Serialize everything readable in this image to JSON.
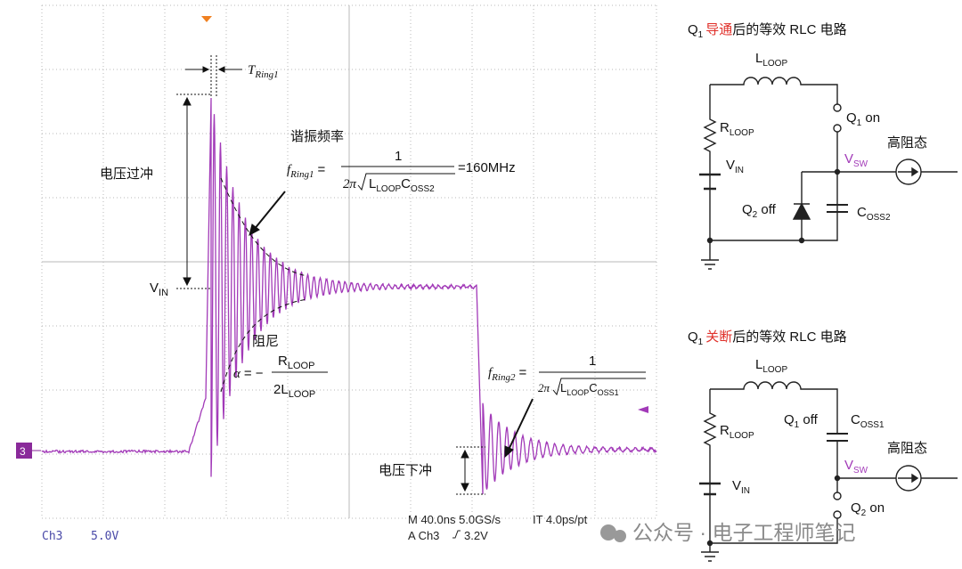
{
  "scope": {
    "channel_marker": "3",
    "t_ring": {
      "main": "T",
      "sub": "Ring1"
    },
    "overshoot": "电压过冲",
    "vin": {
      "main": "V",
      "sub": "IN"
    },
    "resonance_label": "谐振频率",
    "f_ring1": {
      "lhs": {
        "main": "f",
        "sub": "Ring1"
      },
      "eq": "=",
      "num": "1",
      "den_pre": "2π",
      "den_l": {
        "main": "L",
        "sub": "LOOP"
      },
      "den_c": {
        "main": "C",
        "sub": "OSS2"
      },
      "result": "=160MHz"
    },
    "damping_label": "阻尼",
    "alpha": {
      "lhs": "α",
      "eq": "= −",
      "num": {
        "main": "R",
        "sub": "LOOP"
      },
      "den_pre": "2",
      "den": {
        "main": "L",
        "sub": "LOOP"
      }
    },
    "f_ring2": {
      "lhs": {
        "main": "f",
        "sub": "Ring2"
      },
      "eq": "=",
      "num": "1",
      "den_pre": "2π",
      "den_l": {
        "main": "L",
        "sub": "LOOP"
      },
      "den_c": {
        "main": "C",
        "sub": "OSS1"
      }
    },
    "undershoot": "电压下冲",
    "footer": {
      "channel": "Ch3",
      "scale": "5.0V",
      "timebase": "M 40.0ns 5.0GS/s",
      "interp": "IT 4.0ps/pt",
      "trigger": "A  Ch3",
      "trigger_level": "3.2V"
    }
  },
  "circuit_on": {
    "title_pre": "Q",
    "title_sub": "1",
    "title_red": "导通",
    "title_post": "后的等效 RLC 电路",
    "l": {
      "main": "L",
      "sub": "LOOP"
    },
    "r": {
      "main": "R",
      "sub": "LOOP"
    },
    "vin": {
      "main": "V",
      "sub": "IN"
    },
    "q1": {
      "main": "Q",
      "sub": "1",
      "post": " on"
    },
    "vsw": {
      "main": "V",
      "sub": "SW"
    },
    "hiz": "高阻态",
    "q2": {
      "main": "Q",
      "sub": "2",
      "post": " off"
    },
    "c": {
      "main": "C",
      "sub": "OSS2"
    }
  },
  "circuit_off": {
    "title_pre": "Q",
    "title_sub": "1",
    "title_red": "关断",
    "title_post": "后的等效 RLC 电路",
    "l": {
      "main": "L",
      "sub": "LOOP"
    },
    "r": {
      "main": "R",
      "sub": "LOOP"
    },
    "vin": {
      "main": "V",
      "sub": "IN"
    },
    "q1": {
      "main": "Q",
      "sub": "1",
      "post": " off"
    },
    "c": {
      "main": "C",
      "sub": "OSS1"
    },
    "vsw": {
      "main": "V",
      "sub": "SW"
    },
    "hiz": "高阻态",
    "q2": {
      "main": "Q",
      "sub": "2",
      "post": " on"
    }
  },
  "watermark": "公众号 · 电子工程师笔记"
}
